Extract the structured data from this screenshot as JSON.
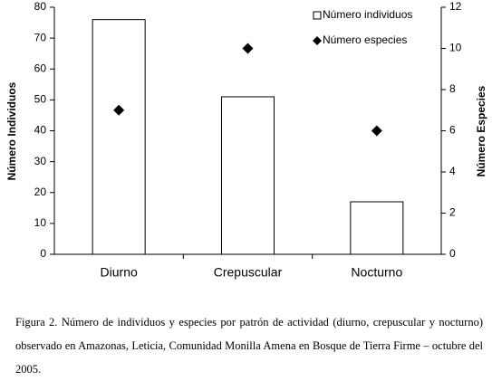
{
  "chart_data": {
    "type": "bar",
    "categories": [
      "Diurno",
      "Crepuscular",
      "Nocturno"
    ],
    "series": [
      {
        "name": "Número individuos",
        "type": "bar",
        "color": "#ffffff",
        "values": [
          76,
          51,
          17
        ]
      },
      {
        "name": "Número especies",
        "type": "scatter",
        "axis": "y2",
        "color": "#000000",
        "values": [
          7,
          10,
          6
        ]
      }
    ],
    "ylabel": "Número Individuos",
    "y2label": "Número Especies",
    "ylim": [
      0,
      80
    ],
    "yticks": [
      0,
      10,
      20,
      30,
      40,
      50,
      60,
      70,
      80
    ],
    "y2lim": [
      0,
      12
    ],
    "y2ticks": [
      0,
      2,
      4,
      6,
      8,
      10,
      12
    ],
    "legend": "upper-right",
    "caption": "Figura 2. Número de individuos y especies por patrón de actividad (diurno, crepuscular y nocturno) observado en Amazonas, Leticia, Comunidad Monilla Amena en Bosque de Tierra Firme – octubre del 2005."
  }
}
